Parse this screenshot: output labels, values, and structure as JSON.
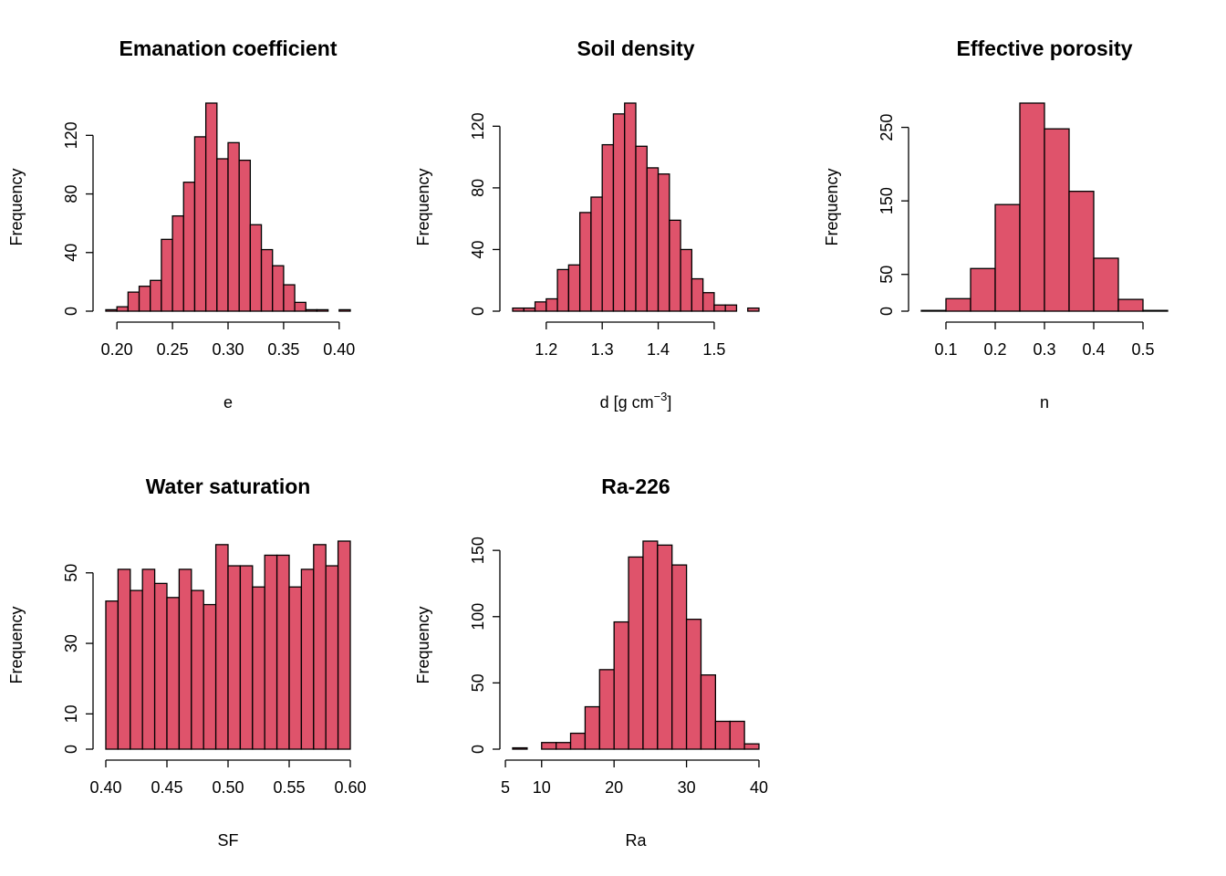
{
  "bar_color": "#df536b",
  "chart_data": [
    {
      "type": "bar",
      "title": "Emanation coefficient",
      "xlabel": "e",
      "ylabel": "Frequency",
      "bin_edges": [
        0.19,
        0.2,
        0.21,
        0.22,
        0.23,
        0.24,
        0.25,
        0.26,
        0.27,
        0.28,
        0.29,
        0.3,
        0.31,
        0.32,
        0.33,
        0.34,
        0.35,
        0.36,
        0.37,
        0.38,
        0.39,
        0.4,
        0.41
      ],
      "counts": [
        1,
        3,
        13,
        17,
        21,
        49,
        65,
        88,
        119,
        142,
        104,
        115,
        103,
        59,
        42,
        31,
        18,
        6,
        1,
        1,
        0,
        1
      ],
      "xticks": [
        0.2,
        0.25,
        0.3,
        0.35,
        0.4
      ],
      "xtick_labels": [
        "0.20",
        "0.25",
        "0.30",
        "0.35",
        "0.40"
      ],
      "yticks": [
        0,
        40,
        80,
        120
      ],
      "ytick_labels": [
        "0",
        "40",
        "80",
        "120"
      ],
      "ylim": [
        0,
        142
      ]
    },
    {
      "type": "bar",
      "title": "Soil density",
      "xlabel": "d [g cm",
      "xlabel_sup": "−3",
      "xlabel_suffix": "]",
      "ylabel": "Frequency",
      "bin_edges": [
        1.14,
        1.16,
        1.18,
        1.2,
        1.22,
        1.24,
        1.26,
        1.28,
        1.3,
        1.32,
        1.34,
        1.36,
        1.38,
        1.4,
        1.42,
        1.44,
        1.46,
        1.48,
        1.5,
        1.52,
        1.54,
        1.56,
        1.58
      ],
      "counts": [
        2,
        2,
        6,
        8,
        27,
        30,
        64,
        74,
        108,
        128,
        135,
        107,
        93,
        89,
        59,
        40,
        21,
        12,
        4,
        4,
        0,
        2
      ],
      "xticks": [
        1.2,
        1.3,
        1.4,
        1.5
      ],
      "xtick_labels": [
        "1.2",
        "1.3",
        "1.4",
        "1.5"
      ],
      "yticks": [
        0,
        40,
        80,
        120
      ],
      "ytick_labels": [
        "0",
        "40",
        "80",
        "120"
      ],
      "ylim": [
        0,
        135
      ]
    },
    {
      "type": "bar",
      "title": "Effective porosity",
      "xlabel": "n",
      "ylabel": "Frequency",
      "bin_edges": [
        0.05,
        0.1,
        0.15,
        0.2,
        0.25,
        0.3,
        0.35,
        0.4,
        0.45,
        0.5,
        0.55
      ],
      "counts": [
        1,
        17,
        58,
        145,
        283,
        248,
        163,
        72,
        16,
        1
      ],
      "xticks": [
        0.1,
        0.2,
        0.3,
        0.4,
        0.5
      ],
      "xtick_labels": [
        "0.1",
        "0.2",
        "0.3",
        "0.4",
        "0.5"
      ],
      "yticks": [
        0,
        50,
        150,
        250
      ],
      "ytick_labels": [
        "0",
        "50",
        "150",
        "250"
      ],
      "ylim": [
        0,
        283
      ]
    },
    {
      "type": "bar",
      "title": "Water saturation",
      "xlabel": "SF",
      "ylabel": "Frequency",
      "bin_edges": [
        0.4,
        0.41,
        0.42,
        0.43,
        0.44,
        0.45,
        0.46,
        0.47,
        0.48,
        0.49,
        0.5,
        0.51,
        0.52,
        0.53,
        0.54,
        0.55,
        0.56,
        0.57,
        0.58,
        0.59,
        0.6
      ],
      "counts": [
        42,
        51,
        45,
        51,
        47,
        43,
        51,
        45,
        41,
        58,
        52,
        52,
        46,
        55,
        55,
        46,
        51,
        58,
        52,
        59
      ],
      "xticks": [
        0.4,
        0.45,
        0.5,
        0.55,
        0.6
      ],
      "xtick_labels": [
        "0.40",
        "0.45",
        "0.50",
        "0.55",
        "0.60"
      ],
      "yticks": [
        0,
        10,
        30,
        50
      ],
      "ytick_labels": [
        "0",
        "10",
        "30",
        "50"
      ],
      "ylim": [
        0,
        59
      ]
    },
    {
      "type": "bar",
      "title": "Ra-226",
      "xlabel": "Ra",
      "ylabel": "Frequency",
      "bin_edges": [
        6,
        8,
        10,
        12,
        14,
        16,
        18,
        20,
        22,
        24,
        26,
        28,
        30,
        32,
        34,
        36,
        38,
        40
      ],
      "counts": [
        1,
        0,
        5,
        5,
        12,
        32,
        60,
        96,
        145,
        157,
        154,
        139,
        98,
        56,
        21,
        21,
        4
      ],
      "xticks": [
        5,
        10,
        20,
        30,
        40
      ],
      "xtick_labels": [
        "5",
        "10",
        "20",
        "30",
        "40"
      ],
      "yticks": [
        0,
        50,
        100,
        150
      ],
      "ytick_labels": [
        "0",
        "50",
        "100",
        "150"
      ],
      "ylim": [
        0,
        157
      ]
    }
  ]
}
